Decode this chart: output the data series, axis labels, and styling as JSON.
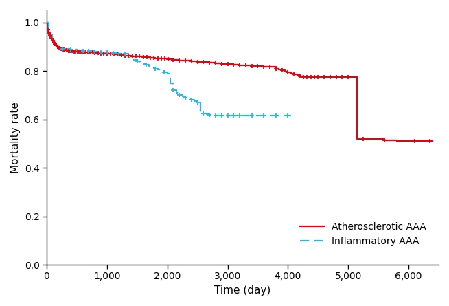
{
  "xlabel": "Time (day)",
  "ylabel": "Mortality rate",
  "xlim": [
    0,
    6500
  ],
  "ylim": [
    0,
    1.05
  ],
  "xticks": [
    0,
    1000,
    2000,
    3000,
    4000,
    5000,
    6000
  ],
  "xticklabels": [
    "0",
    "1,000",
    "2,000",
    "3,000",
    "4,000",
    "5,000",
    "6,000"
  ],
  "yticks": [
    0.0,
    0.2,
    0.4,
    0.6,
    0.8,
    1.0
  ],
  "red_color": "#e8000d",
  "blue_color": "#29b6e8",
  "background": "#ffffff",
  "red_steps": [
    [
      0,
      1.0
    ],
    [
      20,
      0.97
    ],
    [
      40,
      0.955
    ],
    [
      60,
      0.945
    ],
    [
      80,
      0.935
    ],
    [
      100,
      0.925
    ],
    [
      120,
      0.918
    ],
    [
      140,
      0.91
    ],
    [
      160,
      0.905
    ],
    [
      180,
      0.9
    ],
    [
      200,
      0.895
    ],
    [
      220,
      0.893
    ],
    [
      240,
      0.891
    ],
    [
      260,
      0.889
    ],
    [
      280,
      0.887
    ],
    [
      300,
      0.885
    ],
    [
      350,
      0.883
    ],
    [
      400,
      0.882
    ],
    [
      450,
      0.881
    ],
    [
      500,
      0.88
    ],
    [
      600,
      0.878
    ],
    [
      700,
      0.876
    ],
    [
      800,
      0.874
    ],
    [
      900,
      0.872
    ],
    [
      1000,
      0.87
    ],
    [
      1100,
      0.868
    ],
    [
      1200,
      0.865
    ],
    [
      1300,
      0.863
    ],
    [
      1400,
      0.861
    ],
    [
      1500,
      0.859
    ],
    [
      1600,
      0.856
    ],
    [
      1700,
      0.854
    ],
    [
      1800,
      0.852
    ],
    [
      1900,
      0.85
    ],
    [
      2000,
      0.848
    ],
    [
      2100,
      0.846
    ],
    [
      2200,
      0.844
    ],
    [
      2300,
      0.842
    ],
    [
      2400,
      0.84
    ],
    [
      2500,
      0.838
    ],
    [
      2600,
      0.836
    ],
    [
      2700,
      0.834
    ],
    [
      2800,
      0.832
    ],
    [
      2900,
      0.83
    ],
    [
      3000,
      0.828
    ],
    [
      3100,
      0.826
    ],
    [
      3200,
      0.824
    ],
    [
      3300,
      0.822
    ],
    [
      3400,
      0.82
    ],
    [
      3500,
      0.819
    ],
    [
      3600,
      0.818
    ],
    [
      3700,
      0.817
    ],
    [
      3750,
      0.816
    ],
    [
      3800,
      0.81
    ],
    [
      3850,
      0.806
    ],
    [
      3900,
      0.802
    ],
    [
      3950,
      0.798
    ],
    [
      4000,
      0.794
    ],
    [
      4050,
      0.79
    ],
    [
      4100,
      0.786
    ],
    [
      4150,
      0.782
    ],
    [
      4200,
      0.778
    ],
    [
      4250,
      0.775
    ],
    [
      4300,
      0.775
    ],
    [
      4350,
      0.775
    ],
    [
      4400,
      0.775
    ],
    [
      4500,
      0.775
    ],
    [
      4600,
      0.775
    ],
    [
      4700,
      0.775
    ],
    [
      4800,
      0.775
    ],
    [
      4900,
      0.775
    ],
    [
      5000,
      0.775
    ],
    [
      5100,
      0.775
    ],
    [
      5150,
      0.52
    ],
    [
      5200,
      0.52
    ],
    [
      5400,
      0.52
    ],
    [
      5600,
      0.515
    ],
    [
      5800,
      0.51
    ],
    [
      6000,
      0.51
    ],
    [
      6200,
      0.51
    ],
    [
      6400,
      0.51
    ]
  ],
  "red_censors": [
    20,
    40,
    60,
    80,
    100,
    120,
    140,
    160,
    180,
    200,
    220,
    240,
    260,
    280,
    300,
    330,
    360,
    390,
    420,
    450,
    480,
    510,
    540,
    570,
    600,
    640,
    680,
    720,
    760,
    800,
    850,
    900,
    950,
    1000,
    1060,
    1120,
    1180,
    1240,
    1300,
    1360,
    1420,
    1480,
    1540,
    1600,
    1660,
    1720,
    1780,
    1840,
    1900,
    1960,
    2020,
    2100,
    2200,
    2300,
    2400,
    2500,
    2600,
    2700,
    2800,
    2900,
    3000,
    3100,
    3200,
    3300,
    3400,
    3500,
    3600,
    3700,
    3800,
    3900,
    4000,
    4100,
    4200,
    4260,
    4320,
    4380,
    4440,
    4500,
    4600,
    4700,
    4800,
    4900,
    5000,
    5250,
    5600,
    6100,
    6350
  ],
  "blue_steps": [
    [
      0,
      1.0
    ],
    [
      30,
      0.97
    ],
    [
      60,
      0.95
    ],
    [
      90,
      0.93
    ],
    [
      120,
      0.915
    ],
    [
      150,
      0.905
    ],
    [
      180,
      0.9
    ],
    [
      210,
      0.895
    ],
    [
      260,
      0.892
    ],
    [
      300,
      0.89
    ],
    [
      400,
      0.887
    ],
    [
      500,
      0.885
    ],
    [
      600,
      0.883
    ],
    [
      700,
      0.882
    ],
    [
      800,
      0.88
    ],
    [
      900,
      0.878
    ],
    [
      1000,
      0.876
    ],
    [
      1100,
      0.874
    ],
    [
      1200,
      0.872
    ],
    [
      1300,
      0.87
    ],
    [
      1350,
      0.855
    ],
    [
      1400,
      0.85
    ],
    [
      1450,
      0.845
    ],
    [
      1500,
      0.84
    ],
    [
      1550,
      0.835
    ],
    [
      1600,
      0.83
    ],
    [
      1650,
      0.825
    ],
    [
      1700,
      0.82
    ],
    [
      1750,
      0.815
    ],
    [
      1800,
      0.81
    ],
    [
      1850,
      0.805
    ],
    [
      1900,
      0.8
    ],
    [
      1950,
      0.795
    ],
    [
      2000,
      0.79
    ],
    [
      2050,
      0.75
    ],
    [
      2100,
      0.72
    ],
    [
      2150,
      0.71
    ],
    [
      2200,
      0.7
    ],
    [
      2250,
      0.695
    ],
    [
      2300,
      0.69
    ],
    [
      2350,
      0.685
    ],
    [
      2400,
      0.68
    ],
    [
      2450,
      0.675
    ],
    [
      2500,
      0.67
    ],
    [
      2550,
      0.63
    ],
    [
      2600,
      0.625
    ],
    [
      2650,
      0.622
    ],
    [
      2700,
      0.62
    ],
    [
      2750,
      0.618
    ],
    [
      2800,
      0.616
    ],
    [
      2900,
      0.615
    ],
    [
      3000,
      0.615
    ],
    [
      3100,
      0.615
    ],
    [
      3200,
      0.615
    ],
    [
      3300,
      0.615
    ],
    [
      3400,
      0.615
    ],
    [
      3500,
      0.615
    ],
    [
      3600,
      0.615
    ],
    [
      3700,
      0.615
    ],
    [
      3800,
      0.615
    ],
    [
      3900,
      0.615
    ],
    [
      4000,
      0.615
    ],
    [
      4050,
      0.615
    ]
  ],
  "blue_censors": [
    260,
    400,
    600,
    700,
    800,
    900,
    1000,
    1100,
    1200,
    1300,
    1500,
    1650,
    1800,
    1950,
    2100,
    2200,
    2300,
    2400,
    2500,
    2600,
    2700,
    2800,
    2900,
    3000,
    3100,
    3200,
    3400,
    3600,
    3800,
    4000
  ],
  "line_width": 1.6
}
